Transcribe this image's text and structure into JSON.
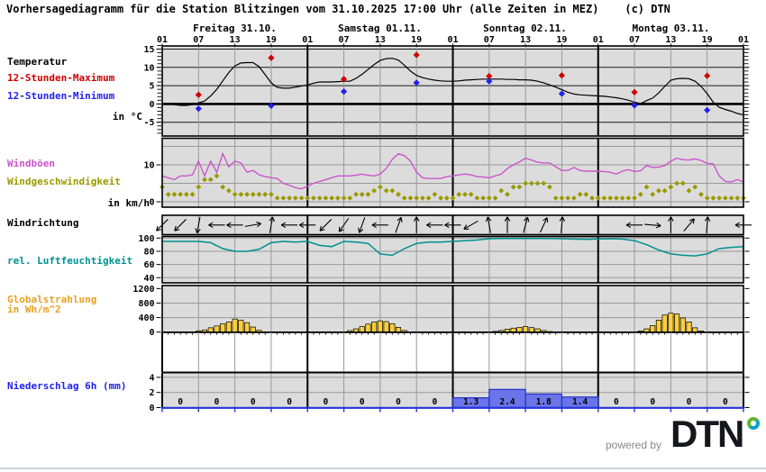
{
  "title": "Vorhersagediagramm für die Station Blitzingen vom 31.10.2025 17:00 Uhr (alle Zeiten in MEZ)    (c) DTN",
  "footer": {
    "powered_by": "powered by",
    "logo_text": "DTN"
  },
  "sidebar": {
    "temp_title": "Temperatur",
    "temp_max": "12-Stunden-Maximum",
    "temp_min": "12-Stunden-Minimum",
    "temp_unit": "in °C",
    "gusts": "Windböen",
    "wind_speed": "Windgeschwindigkeit",
    "wind_unit": "in km/h",
    "wind_dir": "Windrichtung",
    "humidity": "rel. Luftfeuchtigkeit",
    "radiation_line1": "Globalstrahlung",
    "radiation_line2": "in Wh/m^2",
    "precip": "Niederschlag 6h (mm)"
  },
  "colors": {
    "panel_bg": "#dcdcdc",
    "grid_minor": "#999999",
    "grid_day": "#000000",
    "temp_line": "#000000",
    "temp_grid": "#1a1a1a",
    "max": "#cc0000",
    "min": "#2222ee",
    "gusts": "#cc55cc",
    "wind_speed": "#999900",
    "humidity": "#009090",
    "radiation_bar": "#fbcf3a",
    "radiation_label": "#e8a121",
    "precip_bar": "#6b74e8",
    "precip_bar_edge": "#2233cc",
    "precip_axis": "#2233dd"
  },
  "x_axis": {
    "days": [
      "Freitag 31.10.",
      "Samstag 01.11.",
      "Sonntag 02.11.",
      "Montag 03.11."
    ],
    "hour_labels": [
      "01",
      "07",
      "13",
      "19",
      "01",
      "07",
      "13",
      "19",
      "01",
      "07",
      "13",
      "19",
      "01",
      "07",
      "13",
      "19",
      "01"
    ]
  },
  "chart_data": [
    {
      "id": "temperature",
      "type": "line",
      "ylabel": "in °C",
      "yticks": [
        15,
        10,
        5,
        0,
        -5
      ],
      "ylim": [
        -9,
        16
      ],
      "x_step_hours": 1,
      "series": [
        {
          "name": "Temperatur",
          "color": "#000000",
          "values": [
            0.2,
            0.0,
            -0.2,
            -0.4,
            -0.4,
            -0.2,
            0.3,
            0.8,
            2.2,
            4.0,
            6.3,
            8.6,
            10.4,
            11.2,
            11.3,
            11.3,
            10.2,
            8.0,
            5.8,
            4.5,
            4.3,
            4.3,
            4.6,
            4.9,
            5.2,
            5.7,
            6.0,
            6.0,
            6.0,
            6.1,
            6.2,
            6.2,
            7.0,
            8.1,
            9.4,
            10.8,
            11.9,
            12.4,
            12.5,
            12.0,
            10.6,
            9.0,
            7.8,
            7.2,
            6.8,
            6.5,
            6.3,
            6.2,
            6.2,
            6.3,
            6.5,
            6.6,
            6.7,
            6.8,
            6.8,
            6.8,
            6.8,
            6.7,
            6.7,
            6.6,
            6.6,
            6.5,
            6.2,
            5.8,
            5.2,
            4.6,
            3.9,
            3.2,
            2.7,
            2.5,
            2.4,
            2.3,
            2.2,
            2.1,
            1.9,
            1.7,
            1.4,
            1.0,
            0.5,
            0.1,
            0.9,
            1.6,
            3.0,
            4.8,
            6.5,
            6.9,
            7.0,
            6.9,
            6.2,
            4.8,
            2.8,
            0.5,
            -0.9,
            -1.5,
            -2.0,
            -2.6,
            -3.0
          ]
        }
      ],
      "markers": [
        {
          "name": "12-Stunden-Maximum",
          "color": "#cc0000",
          "shape": "diamond",
          "hours": [
            6,
            18,
            30,
            42,
            54,
            66,
            78,
            90
          ],
          "values": [
            2.5,
            12.6,
            6.8,
            13.4,
            7.6,
            7.8,
            3.2,
            7.7
          ]
        },
        {
          "name": "12-Stunden-Minimum",
          "color": "#2222ee",
          "shape": "diamond",
          "hours": [
            6,
            18,
            30,
            42,
            54,
            66,
            78,
            90
          ],
          "values": [
            -1.3,
            -0.5,
            3.4,
            5.8,
            6.2,
            2.8,
            -0.4,
            -1.7
          ]
        }
      ]
    },
    {
      "id": "wind",
      "type": "line",
      "ylabel": "in km/h",
      "yticks": [
        10,
        0
      ],
      "ylim": [
        -1.5,
        17
      ],
      "x_step_hours": 1,
      "series": [
        {
          "name": "Windböen",
          "color": "#cc55cc",
          "style": "line",
          "values": [
            7,
            6.5,
            6,
            7,
            7,
            7.3,
            11,
            7,
            11,
            8,
            13,
            9.5,
            11,
            10.5,
            8,
            8.5,
            7.3,
            6.8,
            6.5,
            6.3,
            5,
            4.5,
            3.8,
            3.5,
            4.2,
            5,
            5.5,
            6,
            6.5,
            7,
            7,
            7,
            7.2,
            7.5,
            7.2,
            7,
            7.5,
            9,
            11.5,
            13,
            12.5,
            11,
            8,
            6.5,
            6.3,
            6.3,
            6.3,
            6.8,
            7,
            7.3,
            7.5,
            7.3,
            6.8,
            6.7,
            6.5,
            7,
            7.5,
            9,
            10,
            10.8,
            11.8,
            11.3,
            10.7,
            10.5,
            10.5,
            9.5,
            8.5,
            8.5,
            9.3,
            8.5,
            8.3,
            8.3,
            8.3,
            8.2,
            8,
            7.5,
            8.3,
            8.7,
            8.2,
            8.4,
            9.8,
            9.3,
            9.4,
            9.8,
            11,
            11.8,
            11.4,
            11.3,
            11.6,
            11.2,
            10.4,
            10.3,
            7,
            5.5,
            5.4,
            6,
            5.4
          ]
        },
        {
          "name": "Windgeschwindigkeit",
          "color": "#999900",
          "style": "diamond-scatter",
          "values": [
            4,
            2,
            2,
            2,
            2,
            2,
            4,
            6,
            6,
            7,
            4,
            3,
            2,
            2,
            2,
            2,
            2,
            2,
            2,
            1,
            1,
            1,
            1,
            1,
            1,
            1,
            1,
            1,
            1,
            1,
            1,
            1,
            2,
            2,
            2,
            3,
            4,
            3,
            3,
            2,
            1,
            1,
            1,
            1,
            1,
            2,
            1,
            1,
            1,
            2,
            2,
            2,
            1,
            1,
            1,
            1,
            3,
            2,
            4,
            4,
            5,
            5,
            5,
            5,
            4,
            1,
            1,
            1,
            1,
            2,
            2,
            1,
            1,
            1,
            1,
            1,
            1,
            1,
            1,
            2,
            4,
            2,
            3,
            3,
            4,
            5,
            5,
            3,
            4,
            2,
            1,
            1,
            1,
            1,
            1,
            1,
            1
          ]
        }
      ]
    },
    {
      "id": "wind-direction",
      "type": "arrows",
      "step_hours": 3,
      "angles_deg_clockwise_from_up": [
        225,
        225,
        190,
        270,
        270,
        80,
        10,
        270,
        270,
        225,
        215,
        200,
        270,
        20,
        0,
        270,
        270,
        240,
        350,
        0,
        15,
        25,
        5,
        null,
        null,
        null,
        270,
        95,
        0,
        40,
        5,
        null,
        270
      ]
    },
    {
      "id": "humidity",
      "type": "line",
      "yticks": [
        100,
        80,
        60,
        40
      ],
      "ylim": [
        30,
        103
      ],
      "x_step_hours": 2,
      "series": [
        {
          "name": "rel. Luftfeuchtigkeit",
          "color": "#009090",
          "values": [
            95,
            95,
            95,
            95,
            93,
            84,
            80,
            80,
            83,
            93,
            95,
            94,
            95,
            89,
            87,
            95,
            94,
            92,
            76,
            74,
            84,
            92,
            94,
            94,
            95,
            96,
            97,
            99,
            99.5,
            99.5,
            99.5,
            99.5,
            99.5,
            99,
            98.5,
            98,
            98.5,
            99,
            98.5,
            96,
            90,
            82,
            76,
            74,
            73,
            76,
            84,
            86,
            87
          ]
        }
      ]
    },
    {
      "id": "radiation",
      "type": "bar",
      "ylabel": "in Wh/m^2",
      "yticks": [
        1200,
        800,
        400,
        0
      ],
      "ylim": [
        0,
        1290
      ],
      "x_step_hours": 1,
      "bar_color": "#fbcf3a",
      "values": [
        0,
        0,
        0,
        0,
        0,
        0,
        35,
        60,
        120,
        170,
        230,
        280,
        360,
        325,
        260,
        140,
        50,
        0,
        0,
        0,
        0,
        0,
        0,
        0,
        0,
        0,
        0,
        0,
        0,
        0,
        0,
        40,
        90,
        150,
        220,
        280,
        310,
        290,
        230,
        130,
        45,
        0,
        0,
        0,
        0,
        0,
        0,
        0,
        0,
        0,
        0,
        0,
        0,
        0,
        0,
        20,
        45,
        80,
        110,
        130,
        150,
        125,
        90,
        45,
        15,
        0,
        0,
        0,
        0,
        0,
        0,
        0,
        0,
        0,
        0,
        0,
        0,
        0,
        0,
        30,
        90,
        180,
        330,
        470,
        520,
        500,
        390,
        280,
        120,
        30,
        0,
        0,
        0,
        0,
        0,
        0,
        0
      ]
    },
    {
      "id": "precipitation",
      "type": "bar",
      "ylabel": "Niederschlag 6h (mm)",
      "yticks": [
        4,
        2,
        0
      ],
      "cell_hours": 6,
      "bar_color": "#6b74e8",
      "values": [
        0,
        0,
        0,
        0,
        0,
        0,
        0,
        0,
        1.3,
        2.4,
        1.8,
        1.4,
        0,
        0,
        0,
        0
      ],
      "cell_labels": [
        "0",
        "0",
        "0",
        "0",
        "0",
        "0",
        "0",
        "0",
        "1.3",
        "2.4",
        "1.8",
        "1.4",
        "0",
        "0",
        "0",
        "0"
      ]
    }
  ]
}
